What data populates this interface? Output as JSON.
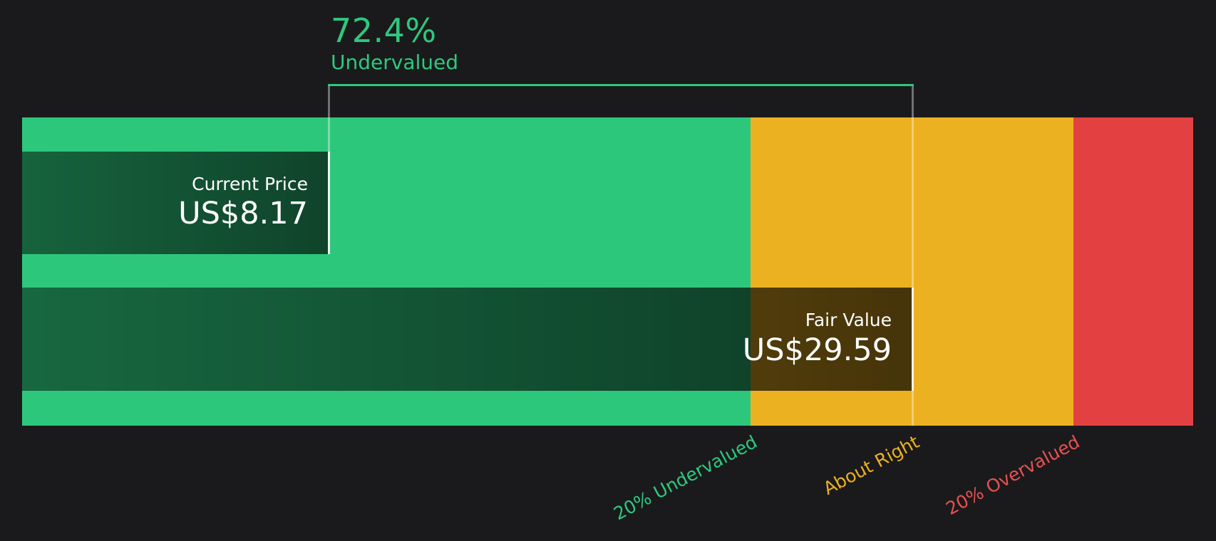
{
  "header": {
    "percent": "72.4%",
    "label": "Undervalued"
  },
  "bars": {
    "current_price": {
      "title": "Current Price",
      "value": "US$8.17"
    },
    "fair_value": {
      "title": "Fair Value",
      "value": "US$29.59"
    }
  },
  "axis_labels": [
    {
      "text": "20% Undervalued",
      "color": "#2dc97e"
    },
    {
      "text": "About Right",
      "color": "#ecb120"
    },
    {
      "text": "20% Overvalued",
      "color": "#e85050"
    }
  ],
  "colors": {
    "background": "#1a1a1c",
    "zone_undervalued": "#2dc77c",
    "zone_about_right": "#ecb120",
    "zone_overvalued": "#e34141",
    "accent_green": "#2dc97e",
    "marker_line": "rgba(255,255,255,0.38)",
    "bar_text": "#ffffff"
  },
  "chart_data": {
    "type": "bar",
    "title": "72.4% Undervalued",
    "currency": "US$",
    "series": [
      {
        "name": "Current Price",
        "value": 8.17
      },
      {
        "name": "Fair Value",
        "value": 29.59
      }
    ],
    "discount_percent": 72.4,
    "discount_direction": "Undervalued",
    "zones": [
      {
        "label": "20% Undervalued",
        "range_of_fair_value": [
          0,
          0.8
        ],
        "color": "#2dc77c"
      },
      {
        "label": "About Right",
        "range_of_fair_value": [
          0.8,
          1.2
        ],
        "color": "#ecb120"
      },
      {
        "label": "20% Overvalued",
        "range_of_fair_value": [
          1.2,
          1.35
        ],
        "color": "#e34141"
      }
    ],
    "annotations": [
      "Bracket spans from current price to fair value marker",
      "White vertical line marks fair value position"
    ],
    "legend_position": "none",
    "grid": false
  }
}
